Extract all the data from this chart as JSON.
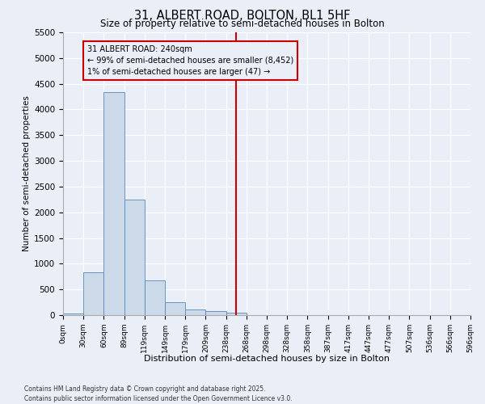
{
  "title": "31, ALBERT ROAD, BOLTON, BL1 5HF",
  "subtitle": "Size of property relative to semi-detached houses in Bolton",
  "xlabel": "Distribution of semi-detached houses by size in Bolton",
  "ylabel": "Number of semi-detached properties",
  "bar_values": [
    30,
    840,
    4330,
    2250,
    680,
    250,
    110,
    75,
    55,
    0,
    0,
    0,
    0,
    0,
    0,
    0,
    0,
    0,
    0,
    0
  ],
  "bin_labels": [
    "0sqm",
    "30sqm",
    "60sqm",
    "89sqm",
    "119sqm",
    "149sqm",
    "179sqm",
    "209sqm",
    "238sqm",
    "268sqm",
    "298sqm",
    "328sqm",
    "358sqm",
    "387sqm",
    "417sqm",
    "447sqm",
    "477sqm",
    "507sqm",
    "536sqm",
    "566sqm",
    "596sqm"
  ],
  "bar_color": "#ccd9e8",
  "bar_edgecolor": "#5588bb",
  "vline_x": 8.5,
  "vline_color": "#cc0000",
  "annotation_text": "31 ALBERT ROAD: 240sqm\n← 99% of semi-detached houses are smaller (8,452)\n1% of semi-detached houses are larger (47) →",
  "annotation_box_color": "#cc0000",
  "ylim": [
    0,
    5500
  ],
  "yticks": [
    0,
    500,
    1000,
    1500,
    2000,
    2500,
    3000,
    3500,
    4000,
    4500,
    5000,
    5500
  ],
  "background_color": "#eaeff7",
  "grid_color": "#ffffff",
  "footer_line1": "Contains HM Land Registry data © Crown copyright and database right 2025.",
  "footer_line2": "Contains public sector information licensed under the Open Government Licence v3.0."
}
